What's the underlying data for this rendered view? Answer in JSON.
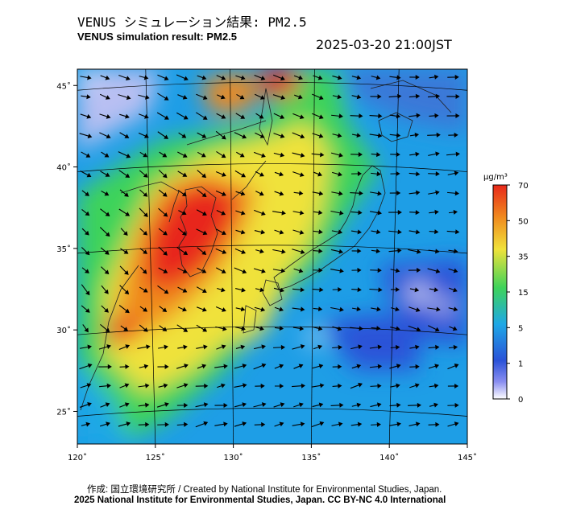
{
  "header": {
    "title_ja": "VENUS シミュレーション結果: PM2.5",
    "title_en": "VENUS simulation result: PM2.5",
    "timestamp": "2025-03-20 21:00JST"
  },
  "map": {
    "x_ticks": [
      {
        "value": 120,
        "label": "120˚"
      },
      {
        "value": 125,
        "label": "125˚"
      },
      {
        "value": 130,
        "label": "130˚"
      },
      {
        "value": 135,
        "label": "135˚"
      },
      {
        "value": 140,
        "label": "140˚"
      },
      {
        "value": 145,
        "label": "145˚"
      }
    ],
    "y_ticks": [
      {
        "value": 45,
        "label": "45˚"
      },
      {
        "value": 40,
        "label": "40˚"
      },
      {
        "value": 35,
        "label": "35˚"
      },
      {
        "value": 30,
        "label": "30˚"
      },
      {
        "value": 25,
        "label": "25˚"
      }
    ],
    "xlim": [
      120,
      145
    ],
    "ylim": [
      23,
      46
    ]
  },
  "colorbar": {
    "unit": "µg/m³",
    "ticks": [
      "70",
      "50",
      "35",
      "15",
      "5",
      "1",
      "0"
    ],
    "colors": [
      "#ffffff",
      "#2a52d8",
      "#1ea8e6",
      "#3ed35a",
      "#f0e23a",
      "#f08a1e",
      "#e8281a"
    ]
  },
  "footer": {
    "credit": "作成: 国立環境研究所 / Created by National Institute for Environmental Studies, Japan.",
    "copyright": "2025 National Institute for Environmental Studies, Japan. CC BY-NC 4.0 International"
  }
}
